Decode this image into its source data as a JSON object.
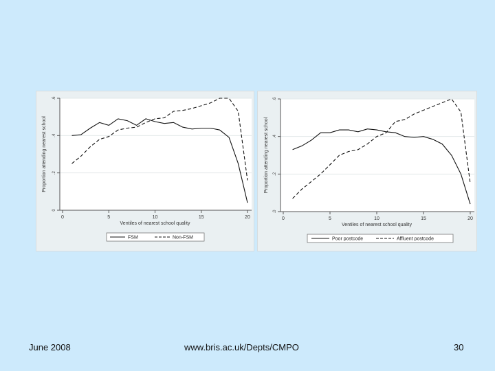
{
  "footer": {
    "date": "June 2008",
    "url": "www.bris.ac.uk/Depts/CMPO",
    "page": "30"
  },
  "colors": {
    "background": "#cdeafc",
    "panel": "#eaf0f2",
    "plot": "#ffffff",
    "line": "#111111"
  },
  "chart_data": [
    {
      "type": "line",
      "title": "",
      "xlabel": "Ventiles of nearest school quality",
      "ylabel": "Proportion attending nearest school",
      "xlim": [
        0,
        20
      ],
      "ylim": [
        0,
        0.6
      ],
      "xticks": [
        "0",
        "5",
        "10",
        "15",
        "20"
      ],
      "yticks": [
        "0",
        ".2",
        ".4",
        ".6"
      ],
      "legend_position": "bottom",
      "series": [
        {
          "name": "FSM",
          "style": "solid",
          "x": [
            1,
            2,
            3,
            4,
            5,
            6,
            7,
            8,
            9,
            10,
            11,
            12,
            13,
            14,
            15,
            16,
            17,
            18,
            19,
            20
          ],
          "values": [
            0.4,
            0.405,
            0.44,
            0.47,
            0.455,
            0.49,
            0.48,
            0.455,
            0.49,
            0.475,
            0.465,
            0.47,
            0.445,
            0.435,
            0.44,
            0.44,
            0.43,
            0.39,
            0.25,
            0.04
          ]
        },
        {
          "name": "Non-FSM",
          "style": "dashed",
          "x": [
            1,
            2,
            3,
            4,
            5,
            6,
            7,
            8,
            9,
            10,
            11,
            12,
            13,
            14,
            15,
            16,
            17,
            18,
            19,
            20
          ],
          "values": [
            0.25,
            0.29,
            0.34,
            0.38,
            0.395,
            0.43,
            0.44,
            0.445,
            0.47,
            0.49,
            0.495,
            0.53,
            0.535,
            0.545,
            0.56,
            0.575,
            0.6,
            0.6,
            0.53,
            0.16
          ]
        }
      ]
    },
    {
      "type": "line",
      "title": "",
      "xlabel": "Ventiles of nearest school quality",
      "ylabel": "Proportion attending nearest school",
      "xlim": [
        0,
        20
      ],
      "ylim": [
        0,
        0.6
      ],
      "xticks": [
        "0",
        "5",
        "10",
        "15",
        "20"
      ],
      "yticks": [
        ".0",
        ".2",
        ".4",
        ".6"
      ],
      "legend_position": "bottom",
      "series": [
        {
          "name": "Poor postcode",
          "style": "solid",
          "x": [
            1,
            2,
            3,
            4,
            5,
            6,
            7,
            8,
            9,
            10,
            11,
            12,
            13,
            14,
            15,
            16,
            17,
            18,
            19,
            20
          ],
          "values": [
            0.33,
            0.35,
            0.38,
            0.42,
            0.42,
            0.435,
            0.435,
            0.425,
            0.44,
            0.435,
            0.425,
            0.42,
            0.4,
            0.395,
            0.4,
            0.385,
            0.36,
            0.3,
            0.2,
            0.04
          ]
        },
        {
          "name": "Affluent postcode",
          "style": "dashed",
          "x": [
            1,
            2,
            3,
            4,
            5,
            6,
            7,
            8,
            9,
            10,
            11,
            12,
            13,
            14,
            15,
            16,
            17,
            18,
            19,
            20
          ],
          "values": [
            0.07,
            0.12,
            0.16,
            0.2,
            0.25,
            0.3,
            0.32,
            0.33,
            0.36,
            0.4,
            0.42,
            0.48,
            0.49,
            0.52,
            0.54,
            0.56,
            0.58,
            0.6,
            0.53,
            0.15
          ]
        }
      ]
    }
  ]
}
